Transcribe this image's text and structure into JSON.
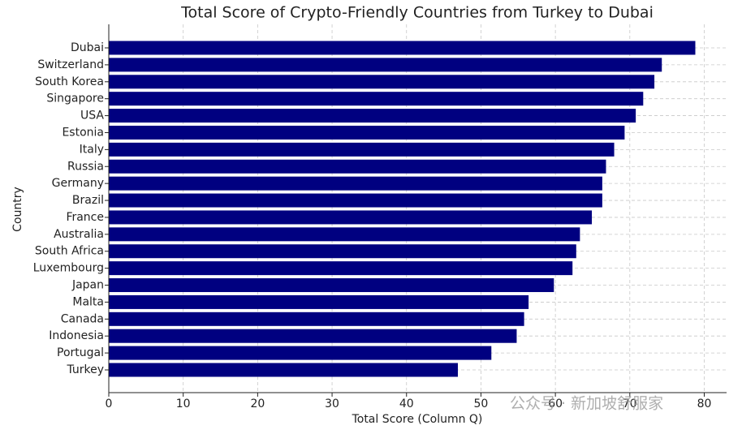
{
  "chart_data": {
    "type": "barh",
    "title": "Total Score of Crypto-Friendly Countries from Turkey to Dubai",
    "xlabel": "Total Score (Column Q)",
    "ylabel": "Country",
    "categories": [
      "Dubai",
      "Switzerland",
      "South Korea",
      "Singapore",
      "USA",
      "Estonia",
      "Italy",
      "Russia",
      "Germany",
      "Brazil",
      "France",
      "Australia",
      "South Africa",
      "Luxembourg",
      "Japan",
      "Malta",
      "Canada",
      "Indonesia",
      "Portugal",
      "Turkey"
    ],
    "values": [
      78.8,
      74.3,
      73.3,
      71.8,
      70.8,
      69.3,
      67.9,
      66.8,
      66.3,
      66.3,
      64.9,
      63.3,
      62.8,
      62.3,
      59.8,
      56.4,
      55.8,
      54.8,
      51.4,
      46.9
    ],
    "color": "#000080",
    "xlim": [
      0,
      83
    ],
    "xticks": [
      0,
      10,
      20,
      30,
      40,
      50,
      60,
      70,
      80
    ],
    "grid": true,
    "watermark": "公众号 · 新加坡舒服家"
  }
}
